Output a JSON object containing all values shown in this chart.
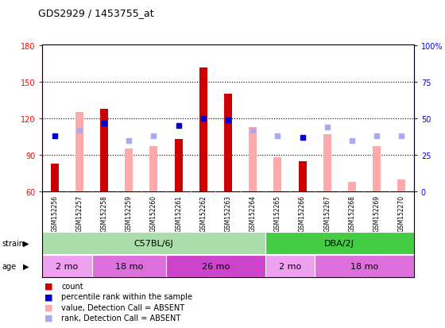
{
  "title": "GDS2929 / 1453755_at",
  "samples": [
    "GSM152256",
    "GSM152257",
    "GSM152258",
    "GSM152259",
    "GSM152260",
    "GSM152261",
    "GSM152262",
    "GSM152263",
    "GSM152264",
    "GSM152265",
    "GSM152266",
    "GSM152267",
    "GSM152268",
    "GSM152269",
    "GSM152270"
  ],
  "count_values": [
    83,
    null,
    128,
    null,
    null,
    103,
    162,
    140,
    null,
    null,
    85,
    null,
    null,
    null,
    null
  ],
  "count_absent": [
    null,
    null,
    null,
    null,
    null,
    null,
    null,
    null,
    null,
    88,
    null,
    null,
    68,
    null,
    70
  ],
  "value_absent": [
    null,
    125,
    null,
    95,
    97,
    null,
    null,
    null,
    113,
    null,
    null,
    107,
    null,
    97,
    null
  ],
  "rank_values": [
    38,
    null,
    47,
    null,
    null,
    45,
    50,
    49,
    null,
    null,
    37,
    null,
    null,
    null,
    null
  ],
  "rank_absent": [
    null,
    42,
    null,
    35,
    38,
    null,
    null,
    null,
    42,
    38,
    null,
    44,
    35,
    38,
    38
  ],
  "ylim_left": [
    60,
    180
  ],
  "ylim_right": [
    0,
    100
  ],
  "yticks_left": [
    60,
    90,
    120,
    150,
    180
  ],
  "yticks_right": [
    0,
    25,
    50,
    75,
    100
  ],
  "strain_groups": [
    {
      "label": "C57BL/6J",
      "start": 0,
      "end": 8,
      "color": "#aaddaa"
    },
    {
      "label": "DBA/2J",
      "start": 9,
      "end": 14,
      "color": "#44cc44"
    }
  ],
  "age_groups": [
    {
      "label": "2 mo",
      "start": 0,
      "end": 1,
      "color": "#f0a0f0"
    },
    {
      "label": "18 mo",
      "start": 2,
      "end": 4,
      "color": "#dd70dd"
    },
    {
      "label": "26 mo",
      "start": 5,
      "end": 8,
      "color": "#cc44cc"
    },
    {
      "label": "2 mo",
      "start": 9,
      "end": 10,
      "color": "#f0a0f0"
    },
    {
      "label": "18 mo",
      "start": 11,
      "end": 14,
      "color": "#dd70dd"
    }
  ],
  "color_count": "#cc0000",
  "color_rank": "#0000cc",
  "color_absent_value": "#ffaaaa",
  "color_absent_rank": "#aaaaee",
  "bg_color": "#ffffff"
}
